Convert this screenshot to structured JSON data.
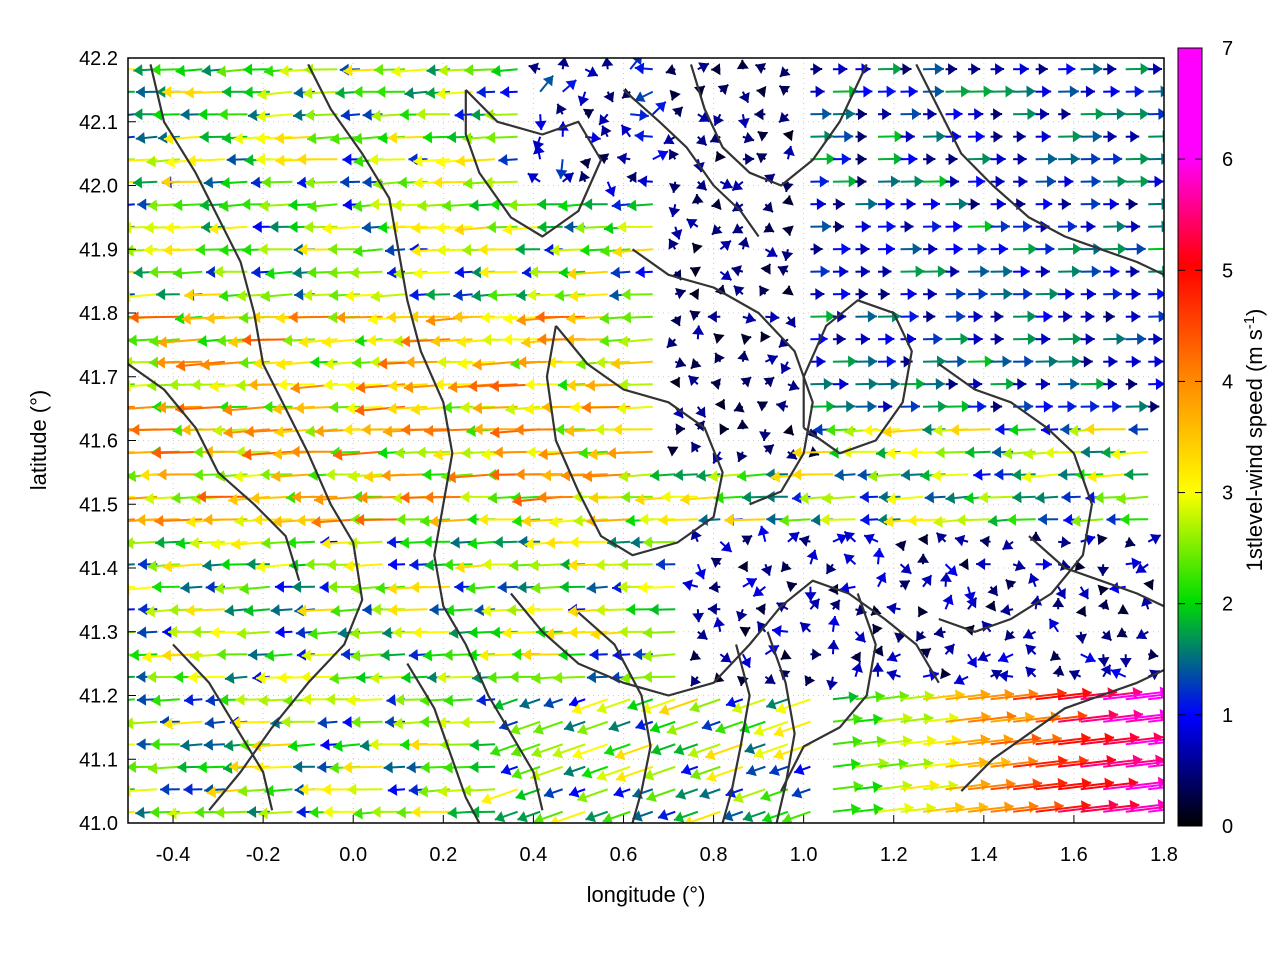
{
  "chart_data": {
    "type": "vector-field",
    "xlabel": "longitude (°)",
    "ylabel": "latitude (°)",
    "colorbar_label": "1stlevel-wind speed (m s",
    "colorbar_label_sup": "-1",
    "colorbar_label_end": ")",
    "xlim": [
      -0.5,
      1.8
    ],
    "ylim": [
      41.0,
      42.2
    ],
    "xticks": [
      "-0.4",
      "-0.2",
      "0.0",
      "0.2",
      "0.4",
      "0.6",
      "0.8",
      "1.0",
      "1.2",
      "1.4",
      "1.6",
      "1.8"
    ],
    "yticks": [
      "41.0",
      "41.1",
      "41.2",
      "41.3",
      "41.4",
      "41.5",
      "41.6",
      "41.7",
      "41.8",
      "41.9",
      "42.0",
      "42.1",
      "42.2"
    ],
    "colorbar": {
      "range": [
        0,
        7
      ],
      "ticks": [
        "0",
        "1",
        "2",
        "3",
        "4",
        "5",
        "6",
        "7"
      ],
      "stops": [
        "#000000",
        "#0000ff",
        "#00dd00",
        "#ffff00",
        "#ff8c00",
        "#ff0000",
        "#ff00ff"
      ]
    },
    "grid": true,
    "contours": [
      [
        [
          -0.45,
          42.19
        ],
        [
          -0.42,
          42.1
        ],
        [
          -0.35,
          42.02
        ],
        [
          -0.3,
          41.95
        ],
        [
          -0.25,
          41.88
        ],
        [
          -0.22,
          41.8
        ],
        [
          -0.2,
          41.72
        ],
        [
          -0.15,
          41.65
        ],
        [
          -0.1,
          41.58
        ],
        [
          -0.05,
          41.5
        ],
        [
          0.0,
          41.44
        ],
        [
          0.02,
          41.35
        ],
        [
          -0.02,
          41.28
        ],
        [
          -0.1,
          41.22
        ],
        [
          -0.18,
          41.15
        ],
        [
          -0.25,
          41.08
        ],
        [
          -0.32,
          41.02
        ]
      ],
      [
        [
          -0.1,
          42.19
        ],
        [
          -0.05,
          42.12
        ],
        [
          0.02,
          42.05
        ],
        [
          0.08,
          41.98
        ],
        [
          0.1,
          41.9
        ],
        [
          0.12,
          41.82
        ],
        [
          0.15,
          41.74
        ],
        [
          0.2,
          41.66
        ],
        [
          0.22,
          41.58
        ],
        [
          0.2,
          41.5
        ],
        [
          0.18,
          41.42
        ],
        [
          0.2,
          41.34
        ],
        [
          0.25,
          41.28
        ],
        [
          0.3,
          41.2
        ],
        [
          0.35,
          41.14
        ],
        [
          0.4,
          41.08
        ],
        [
          0.42,
          41.02
        ]
      ],
      [
        [
          0.25,
          42.15
        ],
        [
          0.32,
          42.1
        ],
        [
          0.42,
          42.08
        ],
        [
          0.5,
          42.1
        ],
        [
          0.55,
          42.04
        ],
        [
          0.5,
          41.96
        ],
        [
          0.42,
          41.92
        ],
        [
          0.35,
          41.95
        ],
        [
          0.28,
          42.02
        ],
        [
          0.25,
          42.08
        ],
        [
          0.25,
          42.15
        ]
      ],
      [
        [
          0.45,
          41.78
        ],
        [
          0.52,
          41.72
        ],
        [
          0.6,
          41.68
        ],
        [
          0.7,
          41.66
        ],
        [
          0.78,
          41.62
        ],
        [
          0.82,
          41.55
        ],
        [
          0.8,
          41.48
        ],
        [
          0.72,
          41.44
        ],
        [
          0.62,
          41.42
        ],
        [
          0.55,
          41.45
        ],
        [
          0.5,
          41.52
        ],
        [
          0.45,
          41.6
        ],
        [
          0.43,
          41.7
        ],
        [
          0.45,
          41.78
        ]
      ],
      [
        [
          0.62,
          41.9
        ],
        [
          0.7,
          41.86
        ],
        [
          0.8,
          41.84
        ],
        [
          0.9,
          41.8
        ],
        [
          0.98,
          41.74
        ],
        [
          1.02,
          41.66
        ],
        [
          1.0,
          41.58
        ],
        [
          0.95,
          41.52
        ],
        [
          0.88,
          41.5
        ]
      ],
      [
        [
          0.75,
          42.19
        ],
        [
          0.78,
          42.12
        ],
        [
          0.82,
          42.06
        ],
        [
          0.88,
          42.02
        ],
        [
          0.95,
          42.0
        ],
        [
          1.02,
          42.04
        ],
        [
          1.08,
          42.1
        ],
        [
          1.12,
          42.16
        ],
        [
          1.14,
          42.19
        ]
      ],
      [
        [
          0.6,
          42.15
        ],
        [
          0.68,
          42.1
        ],
        [
          0.74,
          42.06
        ],
        [
          0.8,
          42.0
        ],
        [
          0.86,
          41.96
        ],
        [
          0.9,
          41.92
        ]
      ],
      [
        [
          1.25,
          42.19
        ],
        [
          1.3,
          42.12
        ],
        [
          1.35,
          42.05
        ],
        [
          1.42,
          42.0
        ],
        [
          1.5,
          41.95
        ],
        [
          1.58,
          41.92
        ],
        [
          1.66,
          41.9
        ],
        [
          1.74,
          41.88
        ],
        [
          1.8,
          41.86
        ]
      ],
      [
        [
          1.3,
          41.72
        ],
        [
          1.38,
          41.68
        ],
        [
          1.46,
          41.66
        ],
        [
          1.54,
          41.62
        ],
        [
          1.6,
          41.58
        ],
        [
          1.64,
          41.5
        ],
        [
          1.62,
          41.42
        ],
        [
          1.55,
          41.36
        ],
        [
          1.46,
          41.32
        ],
        [
          1.38,
          41.3
        ],
        [
          1.3,
          41.32
        ]
      ],
      [
        [
          1.5,
          41.45
        ],
        [
          1.58,
          41.4
        ],
        [
          1.66,
          41.38
        ],
        [
          1.74,
          41.36
        ],
        [
          1.8,
          41.34
        ]
      ],
      [
        [
          0.35,
          41.36
        ],
        [
          0.42,
          41.3
        ],
        [
          0.5,
          41.25
        ],
        [
          0.6,
          41.22
        ],
        [
          0.7,
          41.2
        ],
        [
          0.8,
          41.22
        ],
        [
          0.88,
          41.28
        ],
        [
          0.95,
          41.34
        ],
        [
          1.02,
          41.38
        ],
        [
          1.1,
          41.36
        ],
        [
          1.18,
          41.32
        ],
        [
          1.25,
          41.28
        ],
        [
          1.3,
          41.22
        ]
      ],
      [
        [
          0.5,
          41.33
        ],
        [
          0.58,
          41.28
        ],
        [
          0.64,
          41.2
        ],
        [
          0.66,
          41.12
        ],
        [
          0.64,
          41.05
        ],
        [
          0.62,
          41.0
        ]
      ],
      [
        [
          0.85,
          41.28
        ],
        [
          0.88,
          41.2
        ],
        [
          0.86,
          41.12
        ],
        [
          0.84,
          41.05
        ],
        [
          0.82,
          41.0
        ]
      ],
      [
        [
          0.92,
          41.3
        ],
        [
          0.96,
          41.22
        ],
        [
          0.98,
          41.14
        ],
        [
          0.96,
          41.06
        ],
        [
          0.94,
          41.0
        ]
      ],
      [
        [
          1.12,
          41.36
        ],
        [
          1.16,
          41.28
        ],
        [
          1.14,
          41.2
        ],
        [
          1.08,
          41.15
        ],
        [
          1.0,
          41.12
        ],
        [
          0.95,
          41.05
        ]
      ],
      [
        [
          -0.5,
          41.72
        ],
        [
          -0.42,
          41.68
        ],
        [
          -0.35,
          41.62
        ],
        [
          -0.3,
          41.55
        ],
        [
          -0.22,
          41.5
        ],
        [
          -0.15,
          41.45
        ],
        [
          -0.12,
          41.38
        ]
      ],
      [
        [
          -0.4,
          41.28
        ],
        [
          -0.32,
          41.22
        ],
        [
          -0.26,
          41.15
        ],
        [
          -0.2,
          41.08
        ],
        [
          -0.18,
          41.02
        ]
      ],
      [
        [
          0.12,
          41.25
        ],
        [
          0.18,
          41.18
        ],
        [
          0.22,
          41.1
        ],
        [
          0.25,
          41.04
        ],
        [
          0.28,
          41.0
        ]
      ],
      [
        [
          1.35,
          41.05
        ],
        [
          1.42,
          41.1
        ],
        [
          1.5,
          41.14
        ],
        [
          1.58,
          41.18
        ],
        [
          1.66,
          41.2
        ],
        [
          1.74,
          41.22
        ],
        [
          1.8,
          41.24
        ]
      ],
      [
        [
          1.0,
          41.62
        ],
        [
          1.08,
          41.58
        ],
        [
          1.16,
          41.6
        ],
        [
          1.22,
          41.66
        ],
        [
          1.24,
          41.74
        ],
        [
          1.2,
          41.8
        ],
        [
          1.12,
          41.82
        ],
        [
          1.05,
          41.78
        ],
        [
          1.0,
          41.7
        ],
        [
          1.0,
          41.62
        ]
      ]
    ]
  }
}
